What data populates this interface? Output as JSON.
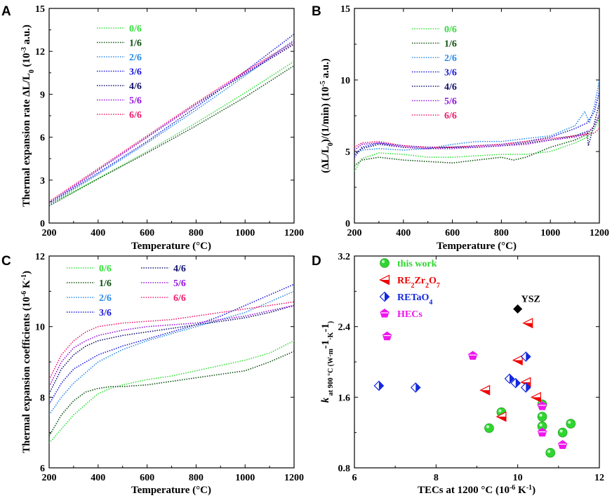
{
  "colors": {
    "s0": "#33e03a",
    "s1": "#0f5212",
    "s2": "#2a8be8",
    "s3": "#1a1adc",
    "s4": "#12126e",
    "s5": "#9313dd",
    "s6": "#f01a6e",
    "thiswork": "#2fd62f",
    "re2zr2o7": "#f00000",
    "retao4": "#1428e0",
    "hecs": "#ee16ee",
    "ysz": "#000000"
  },
  "chart_data": [
    {
      "id": "A",
      "letter": "A",
      "type": "line",
      "xlabel": "Temperature (°C)",
      "ylabel_parts": [
        "Thermal expansion rate ΔL/L",
        "0",
        " (10",
        "-3",
        " a.u.)"
      ],
      "xlim": [
        200,
        1200
      ],
      "ylim": [
        0,
        15
      ],
      "xticks": [
        200,
        400,
        600,
        800,
        1000,
        1200
      ],
      "yticks": [
        0,
        3,
        6,
        9,
        12,
        15
      ],
      "yticklabels": [
        "0",
        "3",
        "6",
        "9",
        "12",
        "15"
      ],
      "legend": {
        "position": "top-left",
        "columns": 1
      },
      "series": [
        {
          "name": "0/6",
          "color_key": "s0",
          "x": [
            200,
            400,
            600,
            800,
            1000,
            1200
          ],
          "y": [
            1.3,
            3.1,
            5.0,
            7.0,
            9.1,
            11.3
          ]
        },
        {
          "name": "1/6",
          "color_key": "s1",
          "x": [
            200,
            400,
            600,
            800,
            1000,
            1200
          ],
          "y": [
            1.2,
            3.1,
            4.9,
            6.8,
            8.8,
            11.0
          ]
        },
        {
          "name": "2/6",
          "color_key": "s2",
          "x": [
            200,
            400,
            600,
            800,
            1000,
            1200
          ],
          "y": [
            1.3,
            3.4,
            5.6,
            7.9,
            10.3,
            12.8
          ]
        },
        {
          "name": "3/6",
          "color_key": "s3",
          "x": [
            200,
            400,
            600,
            800,
            1000,
            1200
          ],
          "y": [
            1.4,
            3.5,
            5.7,
            8.1,
            10.6,
            13.2
          ]
        },
        {
          "name": "4/6",
          "color_key": "s4",
          "x": [
            200,
            400,
            600,
            800,
            1000,
            1200
          ],
          "y": [
            1.4,
            3.7,
            6.0,
            8.3,
            10.4,
            12.5
          ]
        },
        {
          "name": "5/6",
          "color_key": "s5",
          "x": [
            200,
            400,
            600,
            800,
            1000,
            1200
          ],
          "y": [
            1.4,
            3.7,
            6.0,
            8.3,
            10.5,
            12.6
          ]
        },
        {
          "name": "6/6",
          "color_key": "s6",
          "x": [
            200,
            400,
            600,
            800,
            1000,
            1200
          ],
          "y": [
            1.5,
            3.8,
            6.1,
            8.4,
            10.6,
            12.7
          ]
        }
      ]
    },
    {
      "id": "B",
      "letter": "B",
      "type": "line",
      "xlabel": "Temperature (°C)",
      "ylabel_parts": [
        "(ΔL/L",
        "0",
        ")/(1/min) (10",
        "-5",
        " a.u.)"
      ],
      "xlim": [
        200,
        1200
      ],
      "ylim": [
        0,
        15
      ],
      "xticks": [
        200,
        400,
        600,
        800,
        1000,
        1200
      ],
      "yticks": [
        0,
        5,
        10,
        15
      ],
      "yticklabels": [
        "0",
        "5",
        "10",
        "15"
      ],
      "legend": {
        "position": "top-center",
        "columns": 1
      },
      "series": [
        {
          "name": "0/6",
          "color_key": "s0",
          "x": [
            200,
            230,
            300,
            400,
            500,
            600,
            700,
            800,
            900,
            1000,
            1100,
            1150,
            1180,
            1200
          ],
          "y": [
            3.6,
            4.5,
            4.9,
            4.8,
            4.6,
            4.6,
            4.7,
            4.8,
            4.8,
            5.0,
            5.6,
            6.0,
            6.6,
            7.3
          ]
        },
        {
          "name": "1/6",
          "color_key": "s1",
          "x": [
            200,
            230,
            300,
            400,
            500,
            600,
            700,
            800,
            850,
            900,
            1000,
            1100,
            1150,
            1180,
            1200
          ],
          "y": [
            4.0,
            4.4,
            4.6,
            4.4,
            4.3,
            4.2,
            4.4,
            4.6,
            4.4,
            4.6,
            5.3,
            5.8,
            6.2,
            6.8,
            7.5
          ]
        },
        {
          "name": "2/6",
          "color_key": "s2",
          "x": [
            200,
            230,
            300,
            400,
            500,
            600,
            700,
            800,
            900,
            1000,
            1100,
            1140,
            1160,
            1180,
            1200
          ],
          "y": [
            4.8,
            5.1,
            5.2,
            5.1,
            5.2,
            5.5,
            5.7,
            5.7,
            5.9,
            6.1,
            6.8,
            7.8,
            7.0,
            8.2,
            10.0
          ]
        },
        {
          "name": "3/6",
          "color_key": "s3",
          "x": [
            200,
            230,
            300,
            400,
            500,
            600,
            700,
            800,
            900,
            1000,
            1100,
            1150,
            1180,
            1200
          ],
          "y": [
            4.6,
            5.3,
            5.6,
            5.4,
            5.3,
            5.3,
            5.4,
            5.5,
            5.7,
            6.0,
            6.6,
            7.0,
            7.8,
            9.2
          ]
        },
        {
          "name": "4/6",
          "color_key": "s4",
          "x": [
            200,
            230,
            300,
            400,
            500,
            600,
            700,
            800,
            900,
            1000,
            1100,
            1150,
            1155,
            1180,
            1200
          ],
          "y": [
            4.8,
            5.2,
            5.5,
            5.3,
            5.2,
            5.3,
            5.3,
            5.4,
            5.6,
            5.8,
            6.1,
            6.4,
            5.4,
            7.0,
            8.4
          ]
        },
        {
          "name": "5/6",
          "color_key": "s5",
          "x": [
            200,
            230,
            300,
            400,
            500,
            600,
            700,
            800,
            900,
            1000,
            1100,
            1150,
            1180,
            1200
          ],
          "y": [
            5.1,
            5.5,
            5.6,
            5.3,
            5.2,
            5.2,
            5.3,
            5.4,
            5.5,
            5.8,
            6.0,
            6.3,
            6.8,
            7.6
          ]
        },
        {
          "name": "6/6",
          "color_key": "s6",
          "x": [
            200,
            230,
            300,
            400,
            500,
            600,
            700,
            800,
            900,
            1000,
            1100,
            1150,
            1180,
            1200
          ],
          "y": [
            5.3,
            5.6,
            5.7,
            5.4,
            5.3,
            5.3,
            5.4,
            5.5,
            5.7,
            5.9,
            6.1,
            6.2,
            6.3,
            6.6
          ]
        }
      ]
    },
    {
      "id": "C",
      "letter": "C",
      "type": "line",
      "xlabel": "Temperature (°C)",
      "ylabel_parts": [
        "Thermal expansion coefficients (10",
        "-6",
        " K",
        "-1",
        ")"
      ],
      "xlim": [
        200,
        1200
      ],
      "ylim": [
        6,
        12
      ],
      "xticks": [
        200,
        400,
        600,
        800,
        1000,
        1200
      ],
      "yticks": [
        6,
        8,
        10,
        12
      ],
      "yticklabels": [
        "6",
        "8",
        "10",
        "12"
      ],
      "legend": {
        "position": "top-center",
        "columns": 2
      },
      "series": [
        {
          "name": "0/6",
          "color_key": "s0",
          "x": [
            200,
            250,
            300,
            350,
            400,
            450,
            500,
            600,
            700,
            800,
            900,
            1000,
            1100,
            1200
          ],
          "y": [
            6.7,
            7.1,
            7.5,
            7.8,
            8.1,
            8.25,
            8.35,
            8.5,
            8.6,
            8.75,
            8.9,
            9.05,
            9.25,
            9.6
          ]
        },
        {
          "name": "1/6",
          "color_key": "s1",
          "x": [
            200,
            250,
            300,
            350,
            400,
            450,
            500,
            600,
            700,
            800,
            900,
            1000,
            1100,
            1200
          ],
          "y": [
            6.9,
            7.5,
            7.9,
            8.15,
            8.25,
            8.3,
            8.3,
            8.35,
            8.45,
            8.55,
            8.65,
            8.75,
            9.0,
            9.3
          ]
        },
        {
          "name": "2/6",
          "color_key": "s2",
          "x": [
            200,
            250,
            300,
            350,
            400,
            500,
            600,
            700,
            800,
            900,
            1000,
            1100,
            1200
          ],
          "y": [
            7.5,
            8.0,
            8.4,
            8.7,
            9.0,
            9.35,
            9.6,
            9.8,
            10.0,
            10.2,
            10.4,
            10.7,
            11.0
          ]
        },
        {
          "name": "3/6",
          "color_key": "s3",
          "x": [
            200,
            250,
            300,
            350,
            400,
            500,
            600,
            700,
            800,
            900,
            1000,
            1100,
            1200
          ],
          "y": [
            7.8,
            8.4,
            8.8,
            9.0,
            9.2,
            9.45,
            9.65,
            9.85,
            10.05,
            10.3,
            10.6,
            10.9,
            11.2
          ]
        },
        {
          "name": "4/6",
          "color_key": "s4",
          "x": [
            200,
            250,
            300,
            350,
            400,
            500,
            600,
            700,
            800,
            900,
            1000,
            1100,
            1200
          ],
          "y": [
            8.1,
            8.8,
            9.2,
            9.45,
            9.6,
            9.75,
            9.85,
            9.95,
            10.05,
            10.15,
            10.25,
            10.4,
            10.6
          ]
        },
        {
          "name": "5/6",
          "color_key": "s5",
          "x": [
            200,
            250,
            300,
            350,
            400,
            500,
            600,
            700,
            800,
            900,
            1000,
            1100,
            1200
          ],
          "y": [
            8.3,
            9.0,
            9.4,
            9.6,
            9.75,
            9.9,
            10.0,
            10.05,
            10.1,
            10.2,
            10.3,
            10.45,
            10.6
          ]
        },
        {
          "name": "6/6",
          "color_key": "s6",
          "x": [
            200,
            250,
            300,
            350,
            400,
            450,
            500,
            600,
            700,
            800,
            900,
            1000,
            1100,
            1200
          ],
          "y": [
            8.5,
            9.2,
            9.6,
            9.85,
            10.0,
            10.05,
            10.1,
            10.15,
            10.2,
            10.3,
            10.4,
            10.5,
            10.6,
            10.7
          ]
        }
      ]
    },
    {
      "id": "D",
      "letter": "D",
      "type": "scatter",
      "xlabel_parts": [
        "TECs at 1200 °C (10",
        "-6",
        " K",
        "-1",
        ")"
      ],
      "ylabel_parts": [
        "k",
        " at 900 °C (W·m",
        "-1",
        "·K",
        "-1",
        ")"
      ],
      "xlim": [
        6,
        12
      ],
      "ylim": [
        0.8,
        3.2
      ],
      "xticks": [
        6,
        8,
        10,
        12
      ],
      "yticks": [
        0.8,
        1.6,
        2.4,
        3.2
      ],
      "yticklabels": [
        "0.8",
        "1.6",
        "2.4",
        "3.2"
      ],
      "legend": {
        "position": "top-left",
        "columns": 1
      },
      "series": [
        {
          "name": "this work",
          "name_parts": [
            "this work"
          ],
          "marker": "sphere",
          "color_key": "thiswork",
          "x": [
            9.3,
            9.6,
            10.6,
            10.6,
            10.6,
            11.1,
            11.3,
            10.8
          ],
          "y": [
            1.25,
            1.43,
            1.38,
            1.27,
            1.52,
            1.2,
            1.3,
            0.97
          ]
        },
        {
          "name": "RE2Zr2O7",
          "name_parts": [
            "RE",
            "2",
            "Zr",
            "2",
            "O",
            "7"
          ],
          "marker": "left-triangle",
          "color_key": "re2zr2o7",
          "x": [
            9.2,
            9.6,
            10.0,
            10.2,
            10.25,
            10.45
          ],
          "y": [
            1.68,
            1.38,
            2.02,
            1.77,
            2.44,
            1.6
          ]
        },
        {
          "name": "RETaO4",
          "name_parts": [
            "RETaO",
            "4"
          ],
          "marker": "half-diamond",
          "color_key": "retao4",
          "x": [
            6.6,
            7.5,
            9.8,
            9.95,
            10.2,
            10.2
          ],
          "y": [
            1.73,
            1.71,
            1.81,
            1.76,
            1.71,
            2.06
          ]
        },
        {
          "name": "HECs",
          "name_parts": [
            "HECs"
          ],
          "marker": "pentagon",
          "color_key": "hecs",
          "x": [
            6.8,
            8.9,
            10.6,
            10.6,
            11.1
          ],
          "y": [
            2.29,
            2.07,
            1.5,
            1.2,
            1.06
          ]
        }
      ],
      "annotations": [
        {
          "label": "YSZ",
          "x": 10.0,
          "y": 2.6,
          "marker": "diamond",
          "color_key": "ysz"
        }
      ]
    }
  ]
}
